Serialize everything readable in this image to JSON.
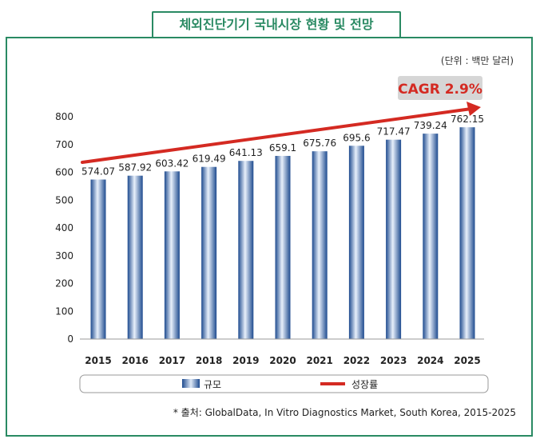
{
  "chart_data": {
    "type": "bar",
    "title": "체외진단기기 국내시장 현황 및 전망",
    "unit": "(단위 : 백만 달러)",
    "categories": [
      "2015",
      "2016",
      "2017",
      "2018",
      "2019",
      "2020",
      "2021",
      "2022",
      "2023",
      "2024",
      "2025"
    ],
    "series": [
      {
        "name": "규모",
        "type": "bar",
        "values": [
          574.07,
          587.92,
          603.42,
          619.49,
          641.13,
          659.1,
          675.76,
          695.6,
          717.47,
          739.24,
          762.15
        ]
      }
    ],
    "value_labels": [
      "574.07",
      "587.92",
      "603.42",
      "619.49",
      "641.13",
      "659.1",
      "675.76",
      "695.6",
      "717.47",
      "739.24",
      "762.15"
    ],
    "trend": {
      "name": "성장률",
      "annotation": "CAGR 2.9%"
    },
    "y_ticks": [
      0,
      100,
      200,
      300,
      400,
      500,
      600,
      700,
      800
    ],
    "ylim": [
      0,
      800
    ],
    "xlabel": "",
    "ylabel": "",
    "source": "* 출처: GlobalData, In Vitro Diagnostics Market, South Korea, 2015-2025",
    "colors": {
      "bar": "#3a6fb5",
      "trend": "#d42a22",
      "frame": "#2a8a63",
      "cagr_box": "#d6d6d6"
    }
  }
}
